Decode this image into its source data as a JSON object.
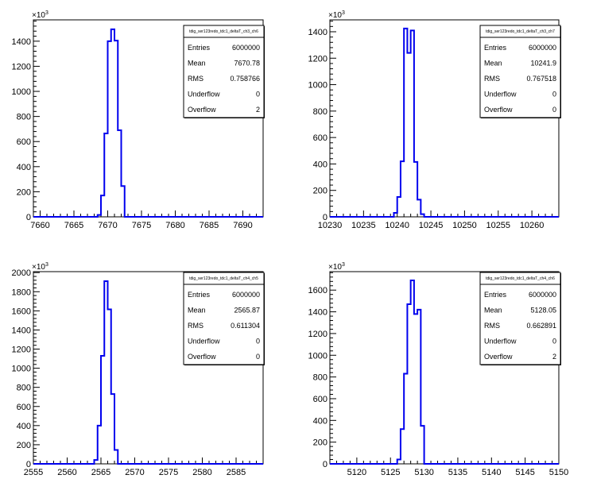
{
  "chart_data": [
    {
      "type": "histogram",
      "stats_title": "tdig_ser123redo_tdc1_deltaT_ch3_ch6",
      "stats": [
        {
          "label": "Entries",
          "value": "6000000"
        },
        {
          "label": "Mean",
          "value": "7670.78"
        },
        {
          "label": "RMS",
          "value": "0.758766"
        },
        {
          "label": "Underflow",
          "value": "0"
        },
        {
          "label": "Overflow",
          "value": "2"
        }
      ],
      "y_exponent": "10^3",
      "xlim": [
        7659,
        7693
      ],
      "ylim": [
        0,
        1570
      ],
      "xticks": [
        7660,
        7665,
        7670,
        7675,
        7680,
        7685,
        7690
      ],
      "yticks": [
        0,
        200,
        400,
        600,
        800,
        1000,
        1200,
        1400
      ],
      "bin_width": 0.5,
      "bins_x_start": [
        7668.5,
        7669,
        7669.5,
        7670,
        7670.5,
        7671,
        7671.5,
        7672
      ],
      "values": [
        15,
        170,
        665,
        1400,
        1495,
        1405,
        690,
        245
      ]
    },
    {
      "type": "histogram",
      "stats_title": "tdig_ser123redo_tdc1_deltaT_ch3_ch7",
      "stats": [
        {
          "label": "Entries",
          "value": "6000000"
        },
        {
          "label": "Mean",
          "value": "10241.9"
        },
        {
          "label": "RMS",
          "value": "0.767518"
        },
        {
          "label": "Underflow",
          "value": "0"
        },
        {
          "label": "Overflow",
          "value": "0"
        }
      ],
      "y_exponent": "10^3",
      "xlim": [
        10230,
        10264
      ],
      "ylim": [
        0,
        1490
      ],
      "xticks": [
        10230,
        10235,
        10240,
        10245,
        10250,
        10255,
        10260
      ],
      "yticks": [
        0,
        200,
        400,
        600,
        800,
        1000,
        1200,
        1400
      ],
      "bin_width": 0.5,
      "bins_x_start": [
        10239.5,
        10240,
        10240.5,
        10241,
        10241.5,
        10242,
        10242.5,
        10243,
        10243.5
      ],
      "values": [
        30,
        150,
        420,
        1425,
        1240,
        1410,
        415,
        130,
        20
      ]
    },
    {
      "type": "histogram",
      "stats_title": "tdig_ser123redo_tdc1_deltaT_ch4_ch5",
      "stats": [
        {
          "label": "Entries",
          "value": "6000000"
        },
        {
          "label": "Mean",
          "value": "2565.87"
        },
        {
          "label": "RMS",
          "value": "0.611304"
        },
        {
          "label": "Underflow",
          "value": "0"
        },
        {
          "label": "Overflow",
          "value": "0"
        }
      ],
      "y_exponent": "10^3",
      "xlim": [
        2555,
        2589
      ],
      "ylim": [
        0,
        2010
      ],
      "xticks": [
        2555,
        2560,
        2565,
        2570,
        2575,
        2580,
        2585
      ],
      "yticks": [
        0,
        200,
        400,
        600,
        800,
        1000,
        1200,
        1400,
        1600,
        1800,
        2000
      ],
      "bin_width": 0.5,
      "bins_x_start": [
        2564,
        2564.5,
        2565,
        2565.5,
        2566,
        2566.5,
        2567
      ],
      "values": [
        40,
        400,
        1130,
        1910,
        1615,
        730,
        145
      ]
    },
    {
      "type": "histogram",
      "stats_title": "tdig_ser123redo_tdc1_deltaT_ch4_ch6",
      "stats": [
        {
          "label": "Entries",
          "value": "6000000"
        },
        {
          "label": "Mean",
          "value": "5128.05"
        },
        {
          "label": "RMS",
          "value": "0.662891"
        },
        {
          "label": "Underflow",
          "value": "0"
        },
        {
          "label": "Overflow",
          "value": "2"
        }
      ],
      "y_exponent": "10^3",
      "xlim": [
        5116,
        5150
      ],
      "ylim": [
        0,
        1770
      ],
      "xticks": [
        5120,
        5125,
        5130,
        5135,
        5140,
        5145,
        5150
      ],
      "yticks": [
        0,
        200,
        400,
        600,
        800,
        1000,
        1200,
        1400,
        1600
      ],
      "bin_width": 0.5,
      "bins_x_start": [
        5126,
        5126.5,
        5127,
        5127.5,
        5128,
        5128.5,
        5129,
        5129.5
      ],
      "values": [
        40,
        320,
        830,
        1470,
        1690,
        1380,
        1420,
        350
      ]
    }
  ]
}
